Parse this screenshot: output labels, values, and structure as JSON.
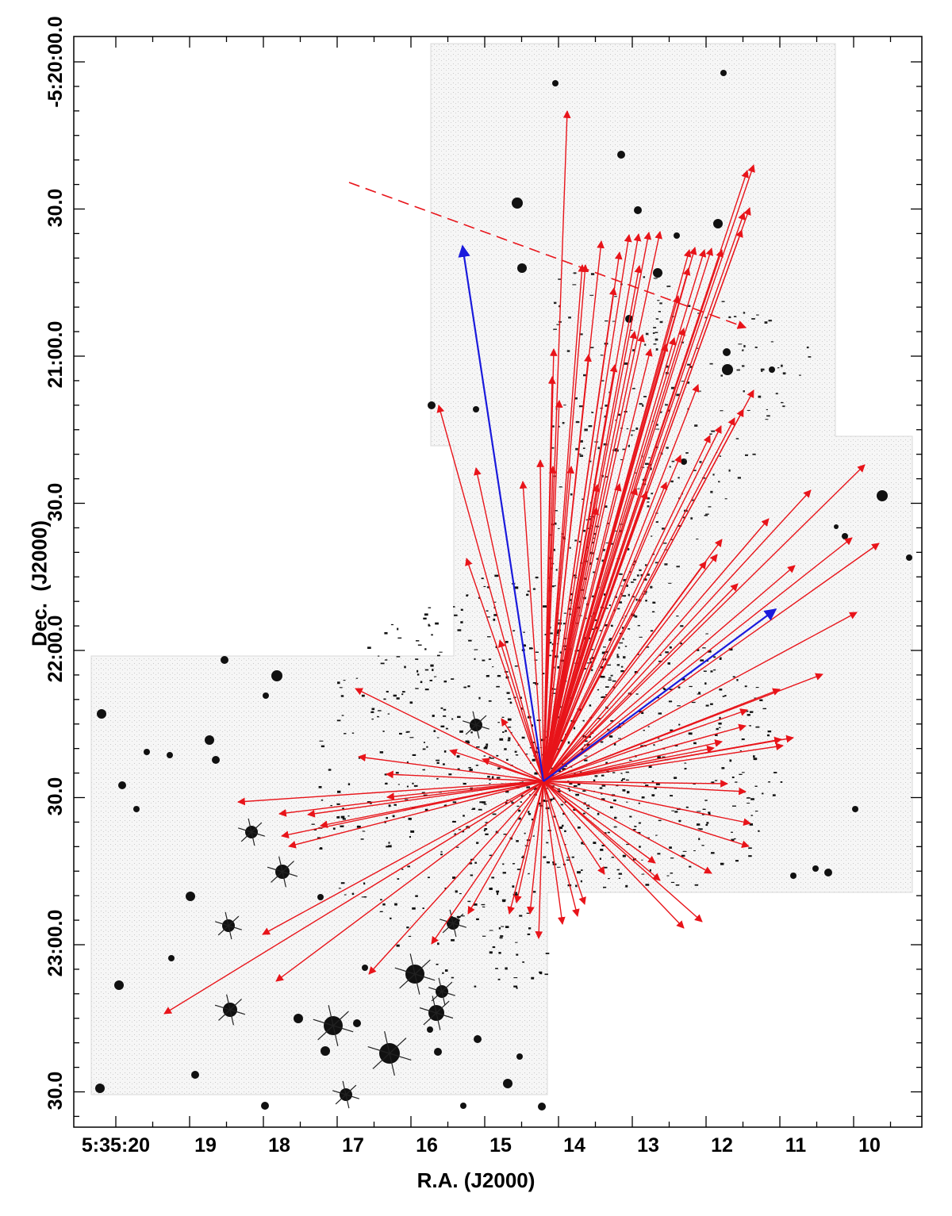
{
  "axes": {
    "xlabel": "R.A. (J2000)",
    "ylabel": "Dec.  (J2000)",
    "x_tick_labels": [
      "5:35:20",
      "19",
      "18",
      "17",
      "16",
      "15",
      "14",
      "13",
      "12",
      "11",
      "10"
    ],
    "y_tick_labels": [
      "-5:20:00.0",
      "30.0",
      "21:00.0",
      "30.0",
      "22:00.0",
      "30.0",
      "23:00.0",
      "30.0"
    ]
  },
  "colors": {
    "outflow_arrow": "#e8141a",
    "blue_arrow": "#1a1adc",
    "frame": "#000000",
    "field_background": "#f4f4f4"
  },
  "legend": "none",
  "image_type": "astronomical negative mosaic with outflow proper-motion arrows"
}
